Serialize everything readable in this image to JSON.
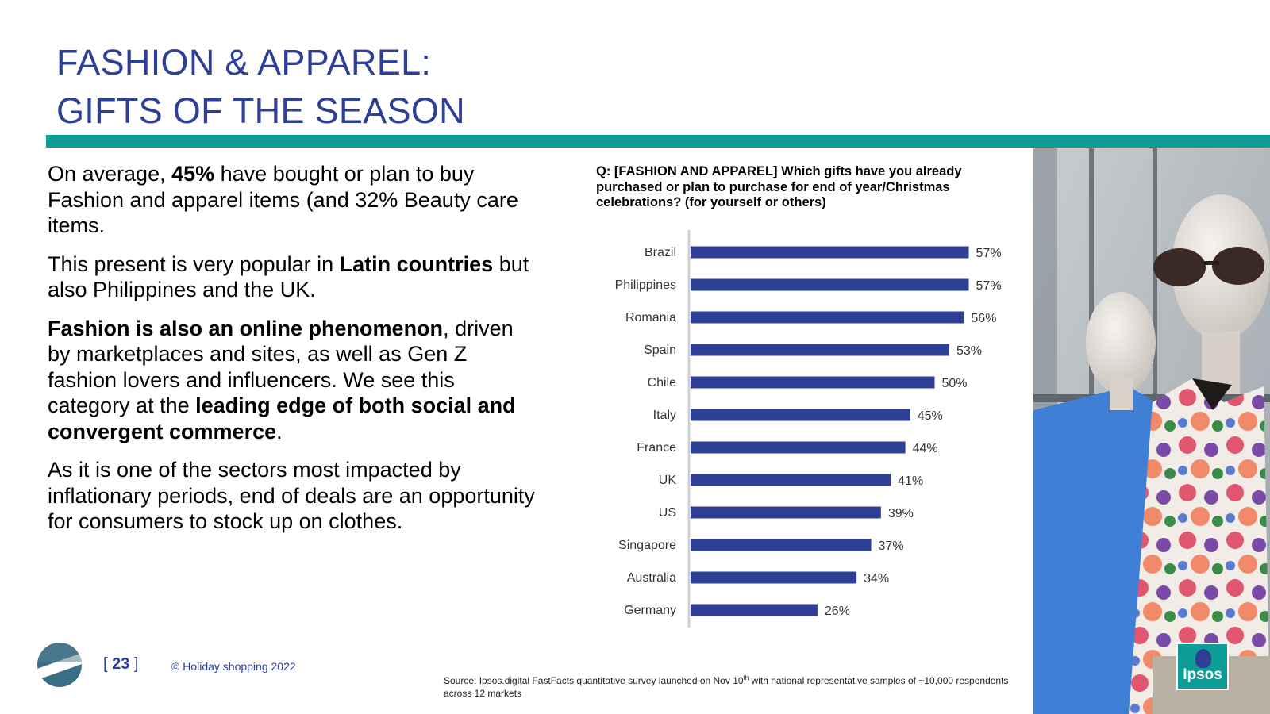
{
  "title": {
    "line1": "FASHION & APPAREL:",
    "line2": "GIFTS OF THE SEASON"
  },
  "body": {
    "p1": {
      "a": "On average, ",
      "b": "45%",
      "c": " have bought or plan to buy Fashion and apparel items (and 32% Beauty care items."
    },
    "p2": {
      "a": "This present is very popular in ",
      "b": "Latin countries",
      "c": " but also Philippines and the UK."
    },
    "p3": {
      "a": "Fashion is also an online phenomenon",
      "b": ", driven by marketplaces and sites, as well as Gen Z fashion lovers and influencers. We see this category at the ",
      "c": "leading edge of both social and convergent commerce",
      "d": "."
    },
    "p4": "As it is one of the sectors most impacted by inflationary periods, end of deals are an opportunity for consumers to stock up on clothes."
  },
  "question": "Q: [FASHION AND APPAREL] Which gifts have you already purchased or plan to purchase for end of year/Christmas celebrations? (for yourself or others)",
  "chart_data": {
    "type": "bar",
    "orientation": "horizontal",
    "categories": [
      "Brazil",
      "Philippines",
      "Romania",
      "Spain",
      "Chile",
      "Italy",
      "France",
      "UK",
      "US",
      "Singapore",
      "Australia",
      "Germany"
    ],
    "values": [
      57,
      57,
      56,
      53,
      50,
      45,
      44,
      41,
      39,
      37,
      34,
      26
    ],
    "data_labels": [
      "57%",
      "57%",
      "56%",
      "53%",
      "50%",
      "45%",
      "44%",
      "41%",
      "39%",
      "37%",
      "34%",
      "26%"
    ],
    "value_unit": "%",
    "bar_color": "#2e3f96",
    "axis_color": "#d0d0d0",
    "xlim": [
      0,
      100
    ],
    "grid": false,
    "legend": "none"
  },
  "source": {
    "prefix": "Source:  Ipsos.digital FastFacts quantitative survey launched on Nov 10",
    "sup": "th",
    "suffix": " with national representative samples of ~10,000 respondents across 12 markets"
  },
  "footer": {
    "page_number": "23",
    "bracket_open": "[ ",
    "bracket_close": " ]",
    "copyright": "© Holiday shopping 2022"
  },
  "brand": {
    "badge_label": "Ipsos",
    "title_color": "#2e3f96",
    "accent_color": "#0f9c96"
  }
}
